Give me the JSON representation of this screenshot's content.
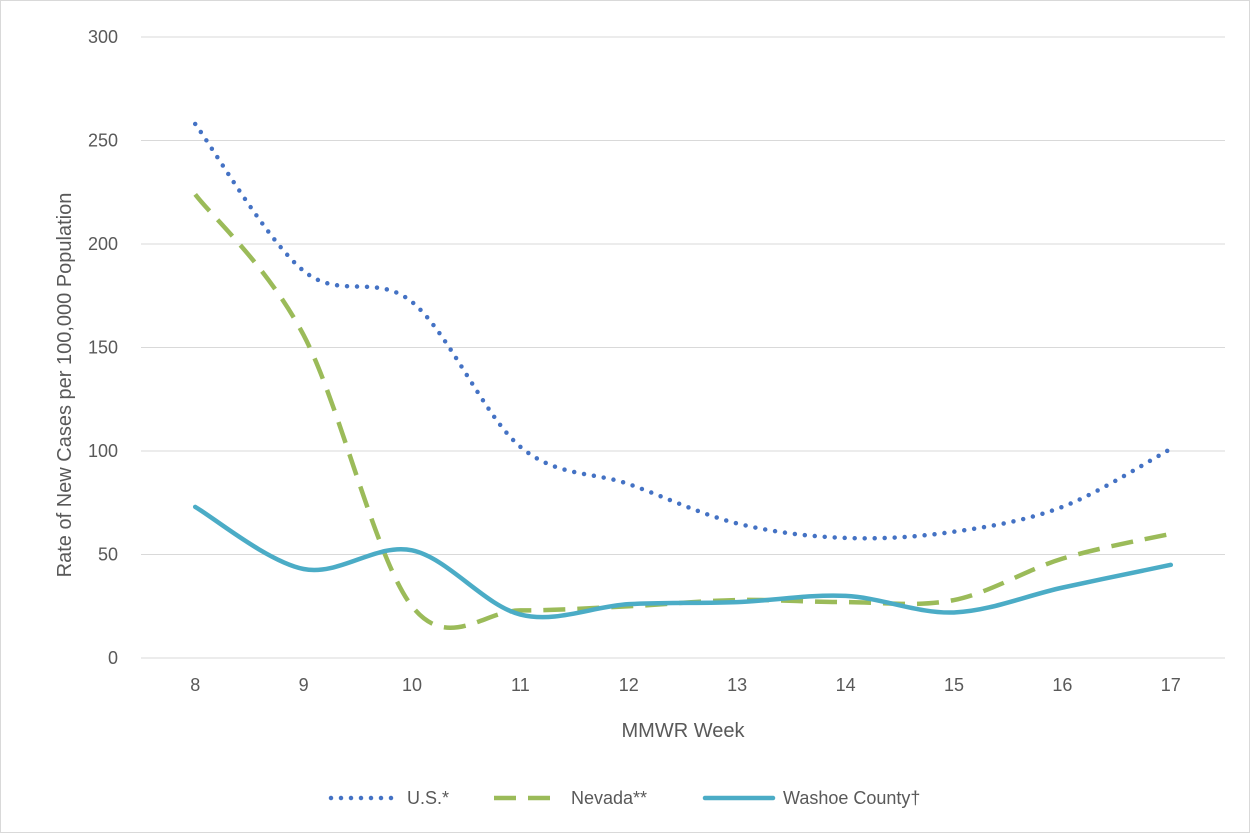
{
  "chart_data": {
    "type": "line",
    "title": "",
    "xlabel": "MMWR Week",
    "ylabel": "Rate of New Cases per 100,000 Population",
    "x": [
      8,
      9,
      10,
      11,
      12,
      13,
      14,
      15,
      16,
      17
    ],
    "ylim": [
      0,
      300
    ],
    "yticks": [
      0,
      50,
      100,
      150,
      200,
      250,
      300
    ],
    "grid": true,
    "legend_position": "bottom",
    "series": [
      {
        "name": "U.S.*",
        "style": "dotted",
        "color": "#4472c4",
        "values": [
          258,
          187,
          172,
          102,
          84,
          65,
          58,
          61,
          73,
          101
        ]
      },
      {
        "name": "Nevada**",
        "style": "dashed",
        "color": "#9bbb59",
        "values": [
          224,
          156,
          25,
          23,
          25,
          28,
          27,
          28,
          48,
          60
        ]
      },
      {
        "name": "Washoe County†",
        "style": "solid",
        "color": "#4bacc6",
        "values": [
          73,
          43,
          52,
          21,
          26,
          27,
          30,
          22,
          34,
          45
        ]
      }
    ]
  }
}
